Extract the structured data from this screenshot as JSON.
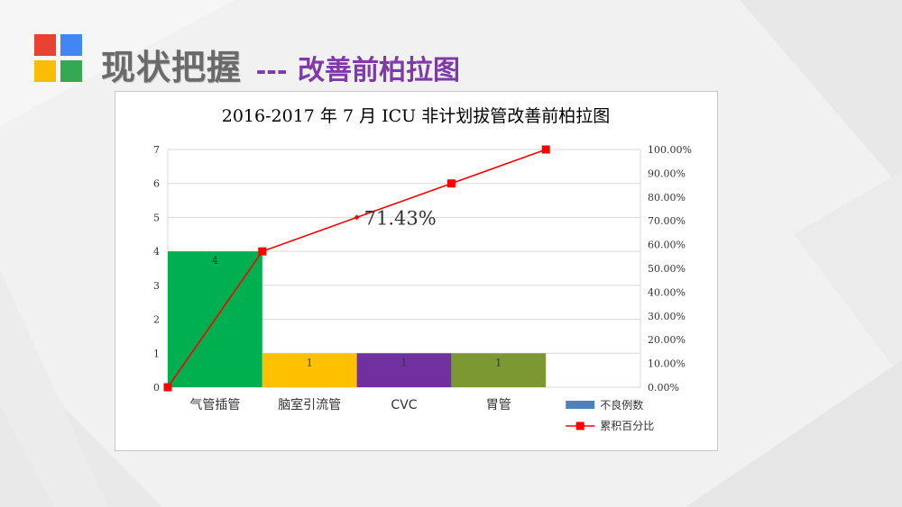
{
  "header": {
    "title_main": "现状把握",
    "separator": "---",
    "title_sub": "改善前柏拉图"
  },
  "chart_data": {
    "type": "bar",
    "title": "2016-2017 年 7 月 ICU 非计划拔管改善前柏拉图",
    "categories": [
      "气管插管",
      "脑室引流管",
      "CVC",
      "胃管"
    ],
    "series": [
      {
        "name": "不良例数",
        "kind": "bar",
        "axis": "left",
        "values": [
          4,
          1,
          1,
          1
        ],
        "bar_colors": [
          "#00b050",
          "#ffc000",
          "#7030a0",
          "#7b9833"
        ],
        "legend_color": "#4f81bd",
        "data_labels": [
          "4",
          "1",
          "1",
          "1"
        ]
      },
      {
        "name": "累积百分比",
        "kind": "line",
        "axis": "right",
        "color": "#ff0000",
        "marker": "square",
        "x": [
          0,
          1,
          2,
          3,
          4
        ],
        "values": [
          0,
          57.14,
          71.43,
          85.71,
          100
        ]
      }
    ],
    "left_axis": {
      "ylim": [
        0,
        7
      ],
      "ticks": [
        "0",
        "1",
        "2",
        "3",
        "4",
        "5",
        "6",
        "7"
      ]
    },
    "right_axis": {
      "ylim": [
        0,
        100
      ],
      "ticks": [
        "0.00%",
        "10.00%",
        "20.00%",
        "30.00%",
        "40.00%",
        "50.00%",
        "60.00%",
        "70.00%",
        "80.00%",
        "90.00%",
        "100.00%"
      ]
    },
    "annotation": {
      "text": "71.43%",
      "at_x": 2
    },
    "grid": true,
    "legend_position": "bottom-right",
    "legend": [
      {
        "label": "不良例数",
        "symbol": "bar",
        "color": "#4f81bd"
      },
      {
        "label": "累积百分比",
        "symbol": "line-square",
        "color": "#ff0000"
      }
    ]
  }
}
